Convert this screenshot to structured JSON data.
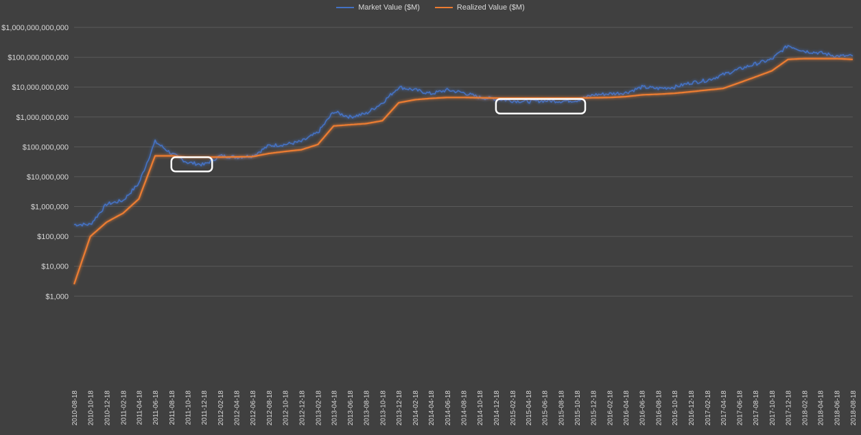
{
  "chart_data": {
    "type": "line",
    "title": "",
    "xlabel": "",
    "ylabel": "",
    "y_scale": "log",
    "ylim": [
      1,
      1000000000000
    ],
    "grid": true,
    "legend_position": "top-center",
    "y_ticks": [
      "$1,000,000,000,000",
      "$100,000,000,000",
      "$10,000,000,000",
      "$1,000,000,000",
      "$100,000,000",
      "$10,000,000",
      "$1,000,000",
      "$100,000",
      "$10,000",
      "$1,000"
    ],
    "x_ticks": [
      "2010-08-18",
      "2010-10-18",
      "2010-12-18",
      "2011-02-18",
      "2011-04-18",
      "2011-06-18",
      "2011-08-18",
      "2011-10-18",
      "2011-12-18",
      "2012-02-18",
      "2012-04-18",
      "2012-06-18",
      "2012-08-18",
      "2012-10-18",
      "2012-12-18",
      "2013-02-18",
      "2013-04-18",
      "2013-06-18",
      "2013-08-18",
      "2013-10-18",
      "2013-12-18",
      "2014-02-18",
      "2014-04-18",
      "2014-06-18",
      "2014-08-18",
      "2014-10-18",
      "2014-12-18",
      "2015-02-18",
      "2015-04-18",
      "2015-06-18",
      "2015-08-18",
      "2015-10-18",
      "2015-12-18",
      "2016-02-18",
      "2016-04-18",
      "2016-06-18",
      "2016-08-18",
      "2016-10-18",
      "2016-12-18",
      "2017-02-18",
      "2017-04-18",
      "2017-06-18",
      "2017-08-18",
      "2017-10-18",
      "2017-12-18",
      "2018-02-18",
      "2018-04-18",
      "2018-06-18",
      "2018-08-18"
    ],
    "x": [
      "2010-08-18",
      "2010-10-18",
      "2010-12-18",
      "2011-02-18",
      "2011-04-18",
      "2011-06-18",
      "2011-08-18",
      "2011-10-18",
      "2011-12-18",
      "2012-02-18",
      "2012-04-18",
      "2012-06-18",
      "2012-08-18",
      "2012-10-18",
      "2012-12-18",
      "2013-02-18",
      "2013-04-18",
      "2013-06-18",
      "2013-08-18",
      "2013-10-18",
      "2013-12-18",
      "2014-02-18",
      "2014-04-18",
      "2014-06-18",
      "2014-08-18",
      "2014-10-18",
      "2014-12-18",
      "2015-02-18",
      "2015-04-18",
      "2015-06-18",
      "2015-08-18",
      "2015-10-18",
      "2015-12-18",
      "2016-02-18",
      "2016-04-18",
      "2016-06-18",
      "2016-08-18",
      "2016-10-18",
      "2016-12-18",
      "2017-02-18",
      "2017-04-18",
      "2017-06-18",
      "2017-08-18",
      "2017-10-18",
      "2017-12-18",
      "2018-02-18",
      "2018-04-18",
      "2018-06-18",
      "2018-08-18"
    ],
    "series": [
      {
        "name": "Market Value ($M)",
        "color": "#4472c4",
        "values": [
          250000,
          250000,
          1200000,
          1600000,
          6000000,
          150000000,
          60000000,
          30000000,
          25000000,
          50000000,
          45000000,
          50000000,
          110000000,
          120000000,
          150000000,
          300000000,
          1500000000,
          1000000000,
          1300000000,
          3000000000,
          10000000000,
          8000000000,
          6000000000,
          8000000000,
          6500000000,
          4500000000,
          4000000000,
          3500000000,
          3300000000,
          3500000000,
          3400000000,
          3600000000,
          5500000000,
          6000000000,
          6500000000,
          10000000000,
          9000000000,
          10000000000,
          14000000000,
          17000000000,
          26000000000,
          40000000000,
          60000000000,
          85000000000,
          250000000000,
          160000000000,
          140000000000,
          110000000000,
          110000000000
        ]
      },
      {
        "name": "Realized Value ($M)",
        "color": "#ed7d31",
        "values": [
          2500,
          100000,
          300000,
          600000,
          1800000,
          50000000,
          50000000,
          45000000,
          45000000,
          45000000,
          46000000,
          47000000,
          60000000,
          70000000,
          80000000,
          120000000,
          500000000,
          550000000,
          600000000,
          750000000,
          3000000000,
          3800000000,
          4200000000,
          4500000000,
          4500000000,
          4400000000,
          4300000000,
          4300000000,
          4300000000,
          4300000000,
          4300000000,
          4300000000,
          4400000000,
          4500000000,
          4800000000,
          5500000000,
          5800000000,
          6200000000,
          7000000000,
          8000000000,
          9000000000,
          14000000000,
          22000000000,
          35000000000,
          85000000000,
          90000000000,
          90000000000,
          90000000000,
          85000000000
        ]
      }
    ],
    "annotations": [
      {
        "type": "highlight-box",
        "x_range": [
          "2011-08-18",
          "2012-01-18"
        ],
        "y_range": [
          15000000,
          45000000
        ]
      },
      {
        "type": "highlight-box",
        "x_range": [
          "2014-12-18",
          "2015-11-18"
        ],
        "y_range": [
          1300000000,
          4000000000
        ]
      }
    ]
  }
}
